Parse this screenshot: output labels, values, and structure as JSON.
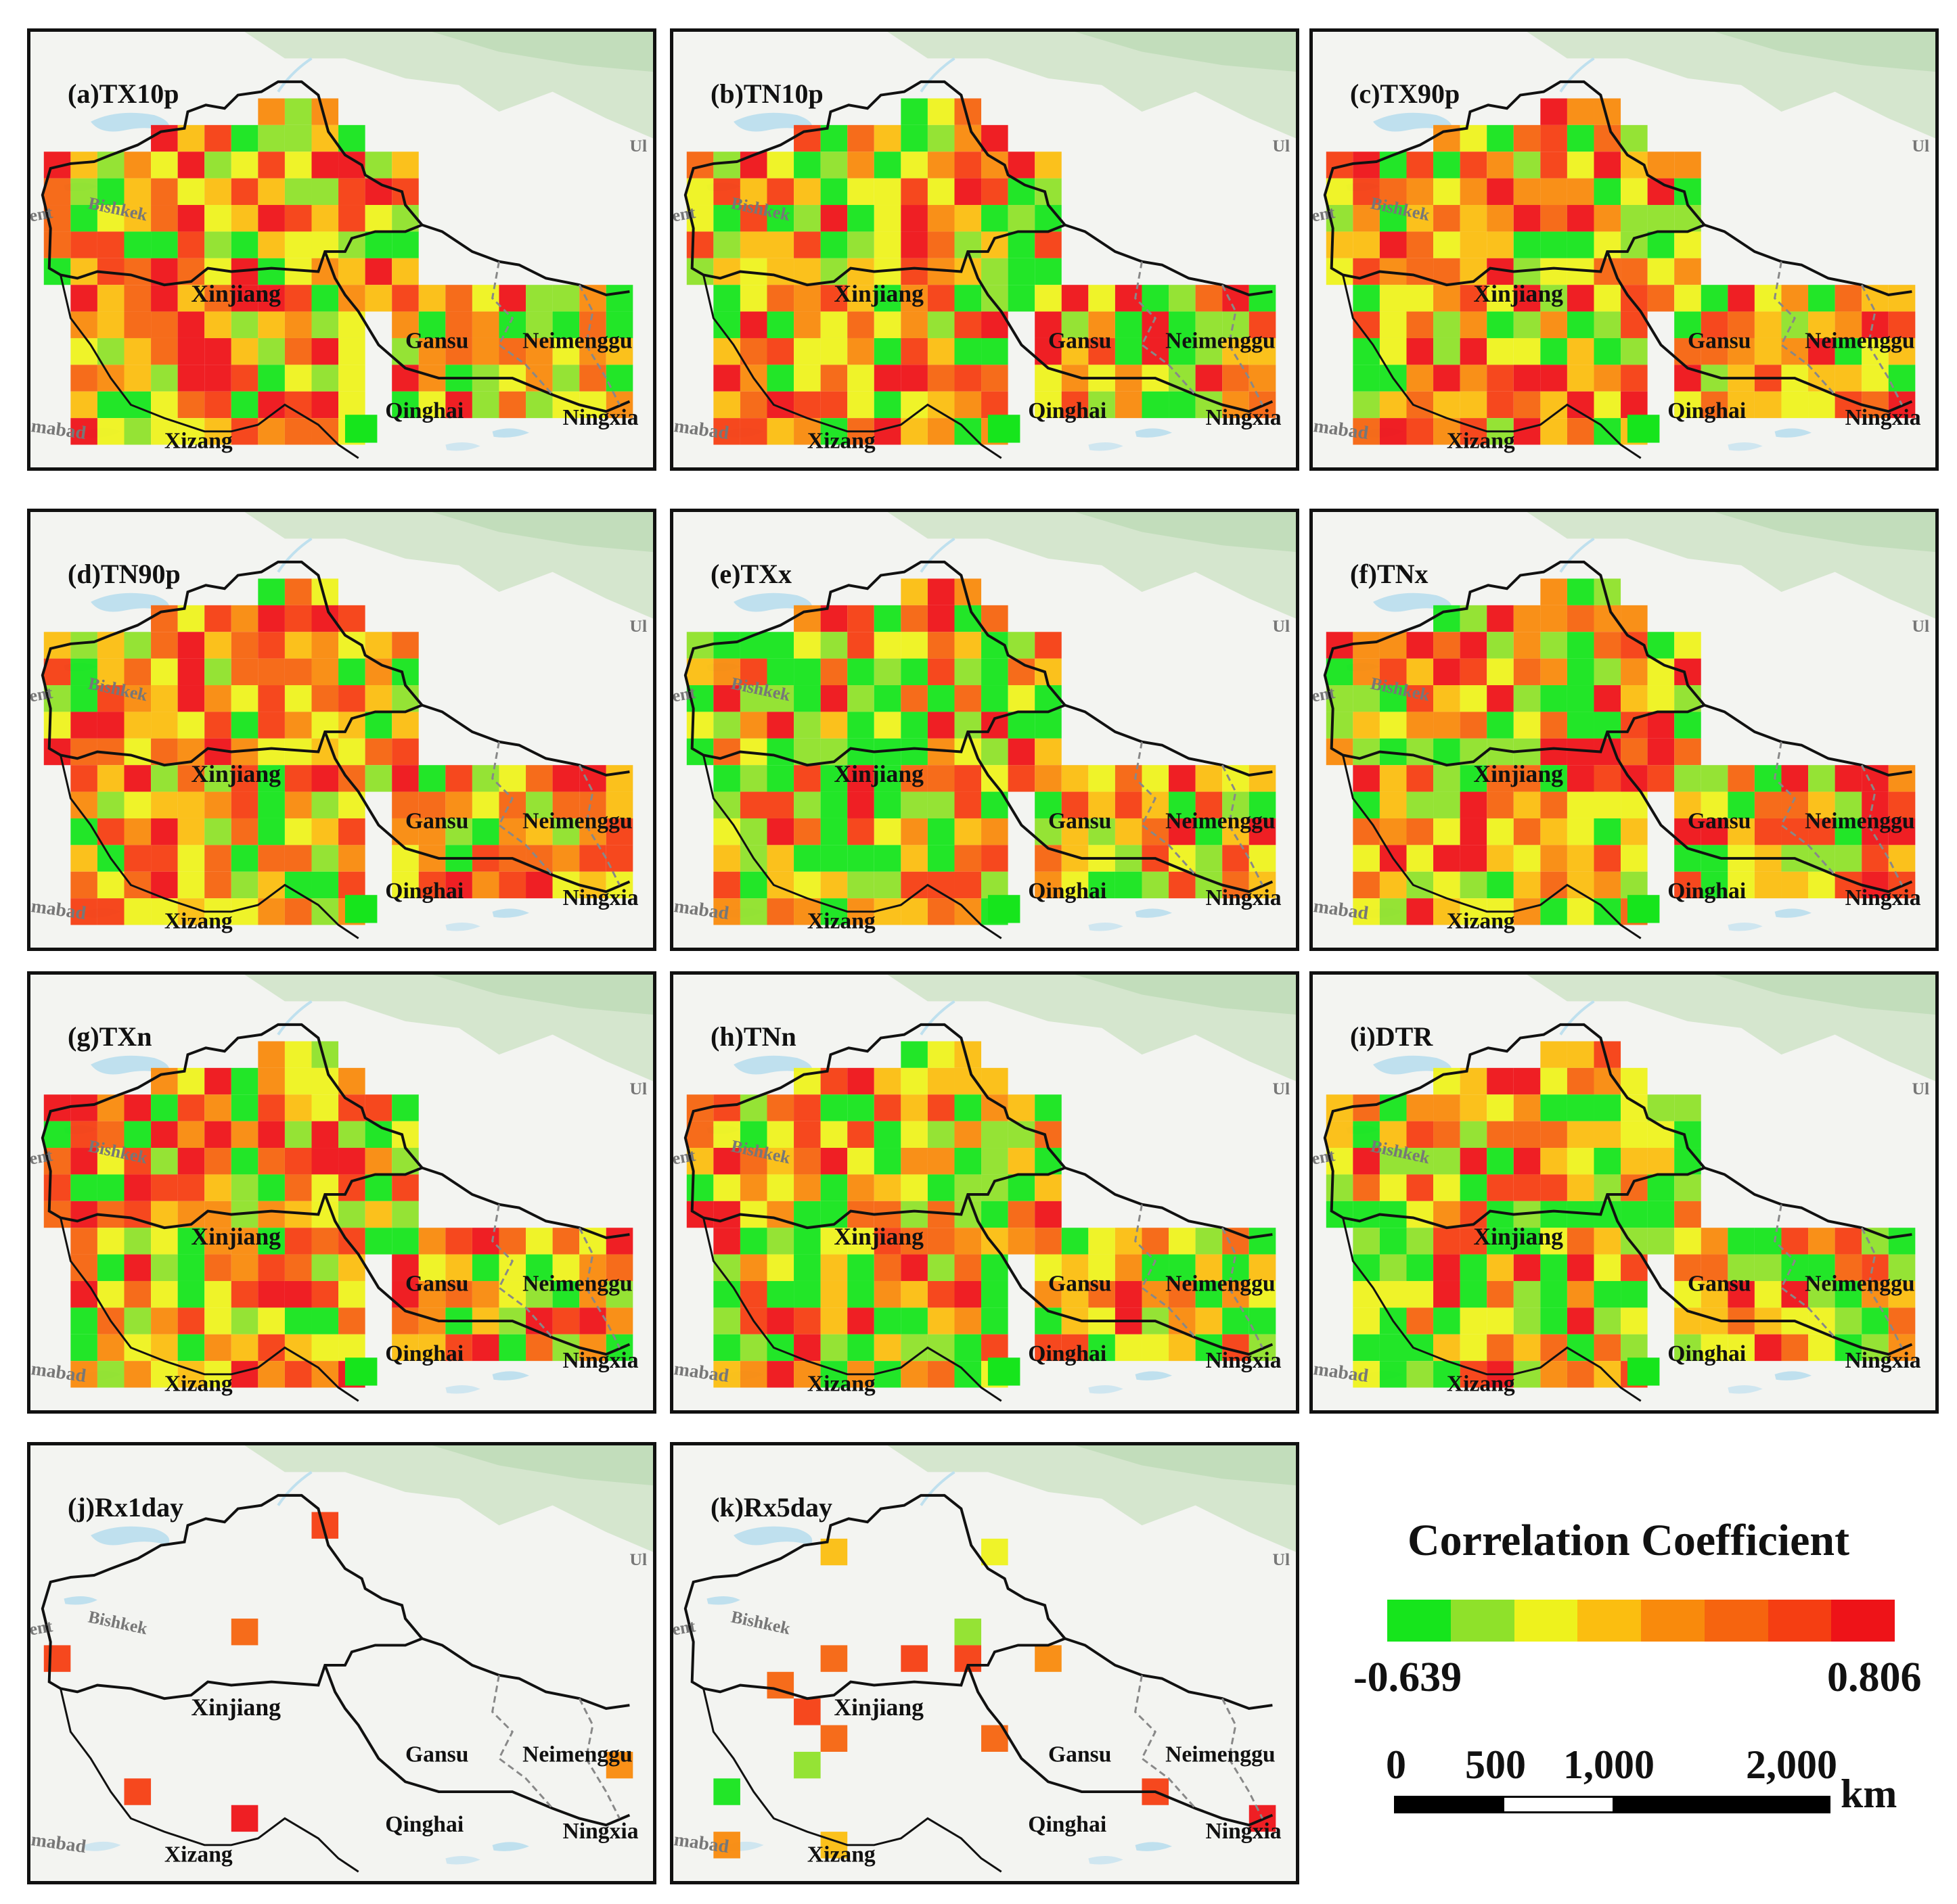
{
  "legend": {
    "title": "Correlation Coefficient",
    "min": "-0.639",
    "max": "0.806",
    "colors": [
      "#16e51c",
      "#8fe12a",
      "#eef21d",
      "#fbbe10",
      "#f98a0c",
      "#f6640f",
      "#f53e12",
      "#ee1318"
    ],
    "scale_labels": [
      "0",
      "500",
      "1,000",
      "2,000"
    ],
    "scale_unit": "km"
  },
  "map_labels": {
    "xinjiang": "Xinjiang",
    "gansu": "Gansu",
    "neimenggu": "Neimenggu",
    "qinghai": "Qinghai",
    "ningxia": "Ningxia",
    "xizang": "Xizang",
    "bishkek": "Bishkek",
    "ent": "ent",
    "mabad": "mabad",
    "ul": "Ul"
  },
  "panels": [
    {
      "title": "(a)TX10p"
    },
    {
      "title": "(b)TN10p"
    },
    {
      "title": "(c)TX90p"
    },
    {
      "title": "(d)TN90p"
    },
    {
      "title": "(e)TXx"
    },
    {
      "title": "(f)TNx"
    },
    {
      "title": "(g)TXn"
    },
    {
      "title": "(h)TNn"
    },
    {
      "title": "(i)DTR"
    },
    {
      "title": "(j)Rx1day"
    },
    {
      "title": "(k)Rx5day"
    }
  ]
}
